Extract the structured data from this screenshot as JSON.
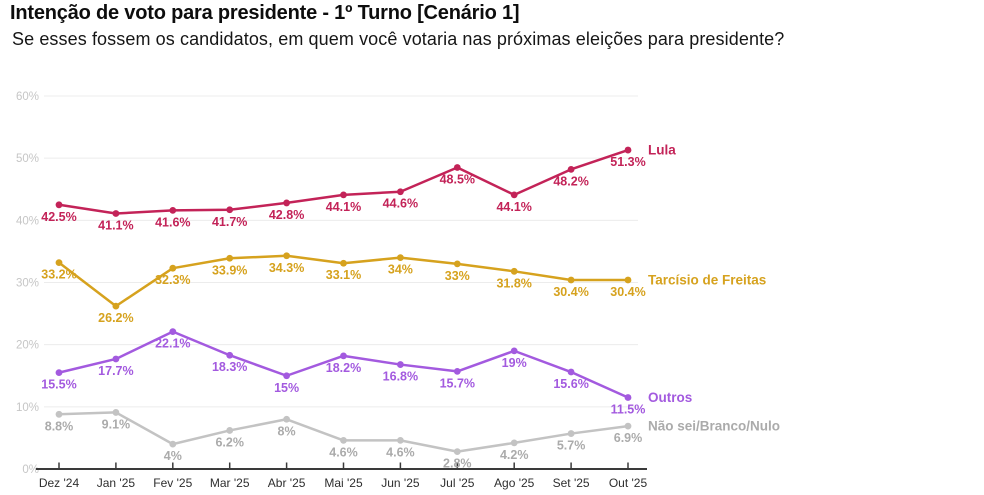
{
  "header": {
    "title": "Intenção de voto para presidente - 1º Turno [Cenário 1]",
    "subtitle": "Se esses fossem os candidatos, em quem você votaria nas próximas eleições para presidente?"
  },
  "chart_data": {
    "type": "line",
    "title": "Intenção de voto para presidente - 1º Turno [Cenário 1]",
    "x_categories": [
      "Dez '24",
      "Jan '25",
      "Fev '25",
      "Mar '25",
      "Abr '25",
      "Mai '25",
      "Jun '25",
      "Jul '25",
      "Ago '25",
      "Set '25",
      "Out '25"
    ],
    "ylim": [
      0,
      60
    ],
    "grid": "horizontal",
    "legend_position": "right-of-line-ends",
    "colors": {
      "axis": "#3A3A3A",
      "gridline": "#ECECEC",
      "y_tick_label": "#C6C6C6",
      "x_tick_label": "#2E2E2E"
    },
    "y_axis": [
      {
        "v": 0,
        "label": "0%"
      },
      {
        "v": 10,
        "label": "10%"
      },
      {
        "v": 20,
        "label": "20%"
      },
      {
        "v": 30,
        "label": "30%"
      },
      {
        "v": 40,
        "label": "40%"
      },
      {
        "v": 50,
        "label": "50%"
      },
      {
        "v": 60,
        "label": "60%"
      }
    ],
    "series": [
      {
        "id": "lula",
        "name": "Lula",
        "color": "#C32358",
        "label_color": "#C32358",
        "values": [
          42.5,
          41.1,
          41.6,
          41.7,
          42.8,
          44.1,
          44.6,
          48.5,
          44.1,
          48.2,
          51.3
        ],
        "labels": [
          "42.5%",
          "41.1%",
          "41.6%",
          "41.7%",
          "42.8%",
          "44.1%",
          "44.6%",
          "48.5%",
          "44.1%",
          "48.2%",
          "51.3%"
        ]
      },
      {
        "id": "tarcisio-de-freitas",
        "name": "Tarcísio de Freitas",
        "color": "#D6A21E",
        "label_color": "#D6A21E",
        "values": [
          33.2,
          26.2,
          32.3,
          33.9,
          34.3,
          33.1,
          34,
          33,
          31.8,
          30.4,
          30.4
        ],
        "labels": [
          "33.2%",
          "26.2%",
          "32.3%",
          "33.9%",
          "34.3%",
          "33.1%",
          "34%",
          "33%",
          "31.8%",
          "30.4%",
          "30.4%"
        ]
      },
      {
        "id": "outros",
        "name": "Outros",
        "color": "#A35ADF",
        "label_color": "#A35ADF",
        "values": [
          15.5,
          17.7,
          22.1,
          18.3,
          15,
          18.2,
          16.8,
          15.7,
          19,
          15.6,
          11.5
        ],
        "labels": [
          "15.5%",
          "17.7%",
          "22.1%",
          "18.3%",
          "15%",
          "18.2%",
          "16.8%",
          "15.7%",
          "19%",
          "15.6%",
          "11.5%"
        ]
      },
      {
        "id": "nao-sei-branco-nulo",
        "name": "Não sei/Branco/Nulo",
        "color": "#C3C3C3",
        "label_color": "#ABABAB",
        "values": [
          8.8,
          9.1,
          4,
          6.2,
          8,
          4.6,
          4.6,
          2.8,
          4.2,
          5.7,
          6.9
        ],
        "labels": [
          "8.8%",
          "9.1%",
          "4%",
          "6.2%",
          "8%",
          "4.6%",
          "4.6%",
          "2.8%",
          "4.2%",
          "5.7%",
          "6.9%"
        ]
      }
    ]
  }
}
